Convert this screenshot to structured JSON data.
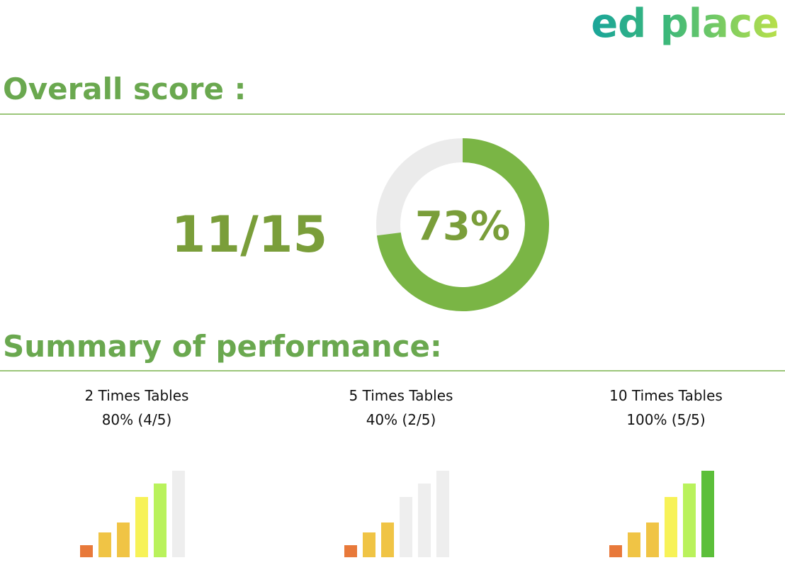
{
  "logo": "ed place",
  "overall": {
    "heading": "Overall score :",
    "score_text": "11/15",
    "percent": 73,
    "percent_label": "73%"
  },
  "summary": {
    "heading": "Summary of performance:",
    "items": [
      {
        "title": "2 Times Tables",
        "label": "80% (4/5)",
        "correct": 4,
        "total": 5
      },
      {
        "title": "5 Times Tables",
        "label": "40% (2/5)",
        "correct": 2,
        "total": 5
      },
      {
        "title": "10 Times Tables",
        "label": "100% (5/5)",
        "correct": 5,
        "total": 5
      }
    ],
    "bar_colors": [
      "#e8793a",
      "#f0c445",
      "#f0c445",
      "#f7f257",
      "#b9f25c",
      "#5cbf3a"
    ],
    "empty_color": "#eeeeee"
  }
}
